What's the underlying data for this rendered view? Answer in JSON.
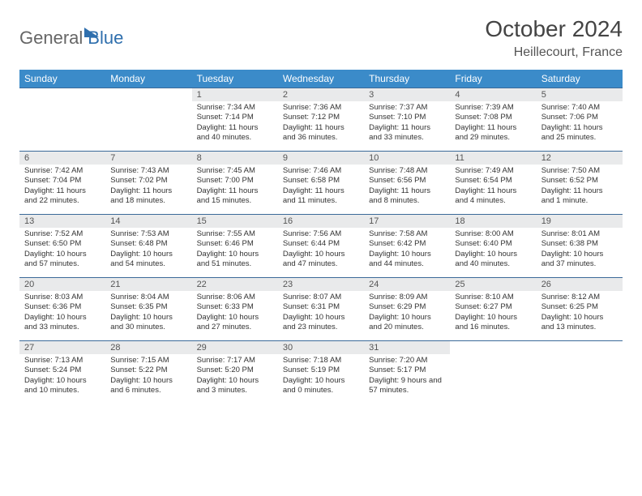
{
  "brand": {
    "part1": "General",
    "part2": "Blue"
  },
  "title": "October 2024",
  "location": "Heillecourt, France",
  "colors": {
    "header_bg": "#3b8bc9",
    "header_text": "#ffffff",
    "row_border": "#3b6a99",
    "daynum_bg": "#e9eaeb",
    "brand_accent": "#2f6fad",
    "brand_gray": "#666666"
  },
  "weekdays": [
    "Sunday",
    "Monday",
    "Tuesday",
    "Wednesday",
    "Thursday",
    "Friday",
    "Saturday"
  ],
  "weeks": [
    [
      null,
      null,
      {
        "n": "1",
        "sr": "Sunrise: 7:34 AM",
        "ss": "Sunset: 7:14 PM",
        "dl": "Daylight: 11 hours and 40 minutes."
      },
      {
        "n": "2",
        "sr": "Sunrise: 7:36 AM",
        "ss": "Sunset: 7:12 PM",
        "dl": "Daylight: 11 hours and 36 minutes."
      },
      {
        "n": "3",
        "sr": "Sunrise: 7:37 AM",
        "ss": "Sunset: 7:10 PM",
        "dl": "Daylight: 11 hours and 33 minutes."
      },
      {
        "n": "4",
        "sr": "Sunrise: 7:39 AM",
        "ss": "Sunset: 7:08 PM",
        "dl": "Daylight: 11 hours and 29 minutes."
      },
      {
        "n": "5",
        "sr": "Sunrise: 7:40 AM",
        "ss": "Sunset: 7:06 PM",
        "dl": "Daylight: 11 hours and 25 minutes."
      }
    ],
    [
      {
        "n": "6",
        "sr": "Sunrise: 7:42 AM",
        "ss": "Sunset: 7:04 PM",
        "dl": "Daylight: 11 hours and 22 minutes."
      },
      {
        "n": "7",
        "sr": "Sunrise: 7:43 AM",
        "ss": "Sunset: 7:02 PM",
        "dl": "Daylight: 11 hours and 18 minutes."
      },
      {
        "n": "8",
        "sr": "Sunrise: 7:45 AM",
        "ss": "Sunset: 7:00 PM",
        "dl": "Daylight: 11 hours and 15 minutes."
      },
      {
        "n": "9",
        "sr": "Sunrise: 7:46 AM",
        "ss": "Sunset: 6:58 PM",
        "dl": "Daylight: 11 hours and 11 minutes."
      },
      {
        "n": "10",
        "sr": "Sunrise: 7:48 AM",
        "ss": "Sunset: 6:56 PM",
        "dl": "Daylight: 11 hours and 8 minutes."
      },
      {
        "n": "11",
        "sr": "Sunrise: 7:49 AM",
        "ss": "Sunset: 6:54 PM",
        "dl": "Daylight: 11 hours and 4 minutes."
      },
      {
        "n": "12",
        "sr": "Sunrise: 7:50 AM",
        "ss": "Sunset: 6:52 PM",
        "dl": "Daylight: 11 hours and 1 minute."
      }
    ],
    [
      {
        "n": "13",
        "sr": "Sunrise: 7:52 AM",
        "ss": "Sunset: 6:50 PM",
        "dl": "Daylight: 10 hours and 57 minutes."
      },
      {
        "n": "14",
        "sr": "Sunrise: 7:53 AM",
        "ss": "Sunset: 6:48 PM",
        "dl": "Daylight: 10 hours and 54 minutes."
      },
      {
        "n": "15",
        "sr": "Sunrise: 7:55 AM",
        "ss": "Sunset: 6:46 PM",
        "dl": "Daylight: 10 hours and 51 minutes."
      },
      {
        "n": "16",
        "sr": "Sunrise: 7:56 AM",
        "ss": "Sunset: 6:44 PM",
        "dl": "Daylight: 10 hours and 47 minutes."
      },
      {
        "n": "17",
        "sr": "Sunrise: 7:58 AM",
        "ss": "Sunset: 6:42 PM",
        "dl": "Daylight: 10 hours and 44 minutes."
      },
      {
        "n": "18",
        "sr": "Sunrise: 8:00 AM",
        "ss": "Sunset: 6:40 PM",
        "dl": "Daylight: 10 hours and 40 minutes."
      },
      {
        "n": "19",
        "sr": "Sunrise: 8:01 AM",
        "ss": "Sunset: 6:38 PM",
        "dl": "Daylight: 10 hours and 37 minutes."
      }
    ],
    [
      {
        "n": "20",
        "sr": "Sunrise: 8:03 AM",
        "ss": "Sunset: 6:36 PM",
        "dl": "Daylight: 10 hours and 33 minutes."
      },
      {
        "n": "21",
        "sr": "Sunrise: 8:04 AM",
        "ss": "Sunset: 6:35 PM",
        "dl": "Daylight: 10 hours and 30 minutes."
      },
      {
        "n": "22",
        "sr": "Sunrise: 8:06 AM",
        "ss": "Sunset: 6:33 PM",
        "dl": "Daylight: 10 hours and 27 minutes."
      },
      {
        "n": "23",
        "sr": "Sunrise: 8:07 AM",
        "ss": "Sunset: 6:31 PM",
        "dl": "Daylight: 10 hours and 23 minutes."
      },
      {
        "n": "24",
        "sr": "Sunrise: 8:09 AM",
        "ss": "Sunset: 6:29 PM",
        "dl": "Daylight: 10 hours and 20 minutes."
      },
      {
        "n": "25",
        "sr": "Sunrise: 8:10 AM",
        "ss": "Sunset: 6:27 PM",
        "dl": "Daylight: 10 hours and 16 minutes."
      },
      {
        "n": "26",
        "sr": "Sunrise: 8:12 AM",
        "ss": "Sunset: 6:25 PM",
        "dl": "Daylight: 10 hours and 13 minutes."
      }
    ],
    [
      {
        "n": "27",
        "sr": "Sunrise: 7:13 AM",
        "ss": "Sunset: 5:24 PM",
        "dl": "Daylight: 10 hours and 10 minutes."
      },
      {
        "n": "28",
        "sr": "Sunrise: 7:15 AM",
        "ss": "Sunset: 5:22 PM",
        "dl": "Daylight: 10 hours and 6 minutes."
      },
      {
        "n": "29",
        "sr": "Sunrise: 7:17 AM",
        "ss": "Sunset: 5:20 PM",
        "dl": "Daylight: 10 hours and 3 minutes."
      },
      {
        "n": "30",
        "sr": "Sunrise: 7:18 AM",
        "ss": "Sunset: 5:19 PM",
        "dl": "Daylight: 10 hours and 0 minutes."
      },
      {
        "n": "31",
        "sr": "Sunrise: 7:20 AM",
        "ss": "Sunset: 5:17 PM",
        "dl": "Daylight: 9 hours and 57 minutes."
      },
      null,
      null
    ]
  ]
}
